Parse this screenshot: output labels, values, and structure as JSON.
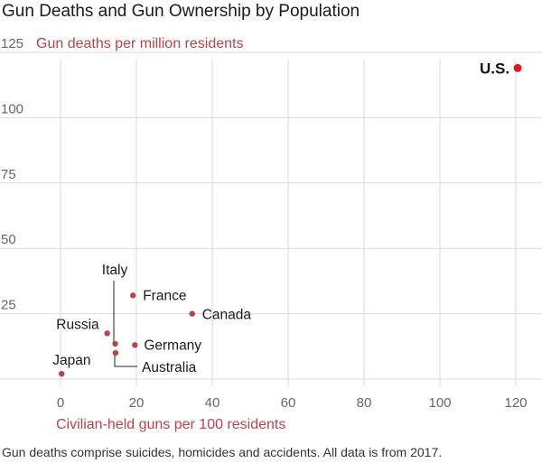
{
  "title": "Gun Deaths and Gun Ownership by Population",
  "note": "Gun deaths comprise suicides, homicides and accidents. All data is from 2017.",
  "colors": {
    "point": "#b5444b",
    "highlight": "#e8141c",
    "label_accent": "#b8434a",
    "grid": "#d9d9d9"
  },
  "chart_data": {
    "type": "scatter",
    "xlabel": "Civilian-held guns per 100 residents",
    "ylabel": "Gun deaths per million residents",
    "xlim": [
      0,
      125
    ],
    "ylim": [
      0,
      125
    ],
    "x_ticks": [
      0,
      20,
      40,
      60,
      80,
      100,
      120
    ],
    "y_ticks": [
      25,
      50,
      75,
      100,
      125
    ],
    "grid": true,
    "points": [
      {
        "label": "U.S.",
        "x": 120.5,
        "y": 119,
        "highlight": true
      },
      {
        "label": "France",
        "x": 19.1,
        "y": 32,
        "highlight": false
      },
      {
        "label": "Canada",
        "x": 34.7,
        "y": 25,
        "highlight": false
      },
      {
        "label": "Italy",
        "x": 14.4,
        "y": 13.5,
        "highlight": false
      },
      {
        "label": "Russia",
        "x": 12.3,
        "y": 17.5,
        "highlight": false
      },
      {
        "label": "Germany",
        "x": 19.6,
        "y": 13,
        "highlight": false
      },
      {
        "label": "Australia",
        "x": 14.5,
        "y": 10,
        "highlight": false
      },
      {
        "label": "Japan",
        "x": 0.3,
        "y": 2,
        "highlight": false
      }
    ]
  }
}
